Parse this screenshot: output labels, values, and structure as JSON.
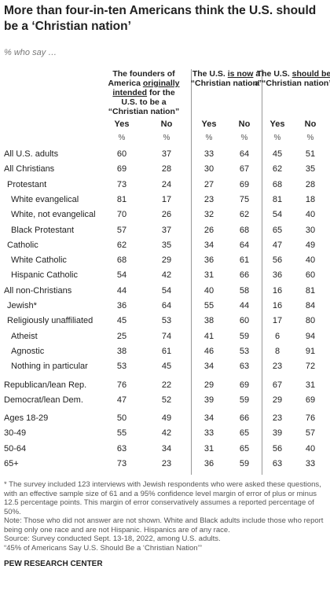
{
  "header": {
    "title": "More than four-in-ten Americans think the U.S. should be a ‘Christian nation’",
    "subtitle": "% who say …"
  },
  "table": {
    "column_groups": [
      {
        "before": "The founders of America ",
        "underlined": "originally intended",
        "after": " for the U.S. to be a “Christian nation”"
      },
      {
        "before": "The U.S. ",
        "underlined": "is now",
        "after": " a “Christian nation”"
      },
      {
        "before": "The U.S. ",
        "underlined": "should be",
        "after": " a “Christian nation”"
      }
    ],
    "columns": [
      "Yes",
      "No",
      "Yes",
      "No",
      "Yes",
      "No"
    ],
    "units": [
      "%",
      "%",
      "%",
      "%",
      "%",
      "%"
    ],
    "sections": [
      {
        "rows": [
          {
            "label": "All U.S. adults",
            "level": 0,
            "values": [
              60,
              37,
              33,
              64,
              45,
              51
            ]
          },
          {
            "label": "All Christians",
            "level": 0,
            "values": [
              69,
              28,
              30,
              67,
              62,
              35
            ]
          },
          {
            "label": "Protestant",
            "level": 1,
            "values": [
              73,
              24,
              27,
              69,
              68,
              28
            ]
          },
          {
            "label": "White evangelical",
            "level": 2,
            "values": [
              81,
              17,
              23,
              75,
              81,
              18
            ]
          },
          {
            "label": "White, not evangelical",
            "level": 2,
            "values": [
              70,
              26,
              32,
              62,
              54,
              40
            ]
          },
          {
            "label": "Black Protestant",
            "level": 2,
            "values": [
              57,
              37,
              26,
              68,
              65,
              30
            ]
          },
          {
            "label": "Catholic",
            "level": 1,
            "values": [
              62,
              35,
              34,
              64,
              47,
              49
            ]
          },
          {
            "label": "White Catholic",
            "level": 2,
            "values": [
              68,
              29,
              36,
              61,
              56,
              40
            ]
          },
          {
            "label": "Hispanic Catholic",
            "level": 2,
            "values": [
              54,
              42,
              31,
              66,
              36,
              60
            ]
          },
          {
            "label": "All non-Christians",
            "level": 0,
            "values": [
              44,
              54,
              40,
              58,
              16,
              81
            ]
          },
          {
            "label": "Jewish*",
            "level": 1,
            "values": [
              36,
              64,
              55,
              44,
              16,
              84
            ]
          },
          {
            "label": "Religiously unaffiliated",
            "level": 1,
            "values": [
              45,
              53,
              38,
              60,
              17,
              80
            ]
          },
          {
            "label": "Atheist",
            "level": 2,
            "values": [
              25,
              74,
              41,
              59,
              6,
              94
            ]
          },
          {
            "label": "Agnostic",
            "level": 2,
            "values": [
              38,
              61,
              46,
              53,
              8,
              91
            ]
          },
          {
            "label": "Nothing in particular",
            "level": 2,
            "values": [
              53,
              45,
              34,
              63,
              23,
              72
            ]
          }
        ]
      },
      {
        "rows": [
          {
            "label": "Republican/lean Rep.",
            "level": 0,
            "values": [
              76,
              22,
              29,
              69,
              67,
              31
            ]
          },
          {
            "label": "Democrat/lean Dem.",
            "level": 0,
            "values": [
              47,
              52,
              39,
              59,
              29,
              69
            ]
          }
        ]
      },
      {
        "rows": [
          {
            "label": "Ages 18-29",
            "level": 0,
            "values": [
              50,
              49,
              34,
              66,
              23,
              76
            ]
          },
          {
            "label": "30-49",
            "level": 0,
            "values": [
              55,
              42,
              33,
              65,
              39,
              57
            ]
          },
          {
            "label": "50-64",
            "level": 0,
            "values": [
              63,
              34,
              31,
              65,
              56,
              40
            ]
          },
          {
            "label": "65+",
            "level": 0,
            "values": [
              73,
              23,
              36,
              59,
              63,
              33
            ]
          }
        ]
      }
    ]
  },
  "footer": {
    "notes": [
      "* The survey included 123 interviews with Jewish respondents who were asked these questions, with an effective sample size of 61 and a 95% confidence level margin of error of plus or minus 12.5 percentage points. This margin of error conservatively assumes a reported percentage of 50%.",
      "Note: Those who did not answer are not shown. White and Black adults include those who report being only one race and are not Hispanic. Hispanics are of any race.",
      "Source: Survey conducted Sept. 13-18, 2022, among U.S. adults.",
      "“45% of Americans Say U.S. Should Be a ‘Christian Nation’”"
    ],
    "source": "PEW RESEARCH CENTER"
  }
}
